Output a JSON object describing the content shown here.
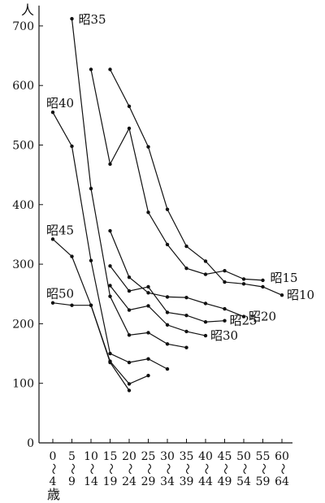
{
  "chart_data": {
    "type": "line",
    "y_unit_label": "人",
    "x_unit_label": "歳",
    "ylim": [
      0,
      700
    ],
    "yticks": [
      0,
      100,
      200,
      300,
      400,
      500,
      600,
      700
    ],
    "x_ticks": [
      {
        "x": 0,
        "top": "0",
        "tilde": "〜",
        "bottom": "4"
      },
      {
        "x": 5,
        "top": "5",
        "tilde": "〜",
        "bottom": "9"
      },
      {
        "x": 10,
        "top": "10",
        "tilde": "〜",
        "bottom": "14"
      },
      {
        "x": 15,
        "top": "15",
        "tilde": "〜",
        "bottom": "19"
      },
      {
        "x": 20,
        "top": "20",
        "tilde": "〜",
        "bottom": "24"
      },
      {
        "x": 25,
        "top": "25",
        "tilde": "〜",
        "bottom": "29"
      },
      {
        "x": 30,
        "top": "30",
        "tilde": "〜",
        "bottom": "34"
      },
      {
        "x": 35,
        "top": "35",
        "tilde": "〜",
        "bottom": "39"
      },
      {
        "x": 40,
        "top": "40",
        "tilde": "〜",
        "bottom": "44"
      },
      {
        "x": 45,
        "top": "45",
        "tilde": "〜",
        "bottom": "49"
      },
      {
        "x": 50,
        "top": "50",
        "tilde": "〜",
        "bottom": "54"
      },
      {
        "x": 55,
        "top": "55",
        "tilde": "〜",
        "bottom": "59"
      },
      {
        "x": 60,
        "top": "60",
        "tilde": "〜",
        "bottom": "64"
      }
    ],
    "grid": false,
    "series": [
      {
        "name": "昭10",
        "label_side": "end",
        "x": [
          15,
          20,
          25,
          30,
          35,
          40,
          45,
          50,
          55,
          60
        ],
        "y": [
          627,
          565,
          497,
          392,
          330,
          305,
          270,
          267,
          262,
          248
        ]
      },
      {
        "name": "昭15",
        "label_side": "end",
        "x": [
          10,
          15,
          20,
          25,
          30,
          35,
          40,
          45,
          50,
          55
        ],
        "y": [
          627,
          468,
          528,
          387,
          333,
          293,
          283,
          289,
          275,
          273
        ]
      },
      {
        "name": "昭20",
        "label_side": "end",
        "x": [
          15,
          20,
          25,
          30,
          35,
          40,
          45,
          50
        ],
        "y": [
          356,
          278,
          252,
          245,
          244,
          234,
          225,
          212
        ]
      },
      {
        "name": "昭25",
        "label_side": "end",
        "x": [
          15,
          20,
          25,
          30,
          35,
          40,
          45
        ],
        "y": [
          297,
          255,
          262,
          219,
          214,
          203,
          205
        ]
      },
      {
        "name": "昭30",
        "label_side": "end",
        "x": [
          15,
          20,
          25,
          30,
          35,
          40
        ],
        "y": [
          264,
          223,
          230,
          198,
          187,
          180
        ]
      },
      {
        "name": "昭35",
        "label_side": "start",
        "x": [
          5,
          10,
          15,
          20,
          25,
          30,
          35
        ],
        "y": [
          712,
          427,
          246,
          181,
          185,
          166,
          160
        ]
      },
      {
        "name": "昭40",
        "label_side": "start",
        "x": [
          0,
          5,
          10,
          15,
          20,
          25,
          30
        ],
        "y": [
          555,
          498,
          306,
          150,
          135,
          141,
          124
        ]
      },
      {
        "name": "昭45",
        "label_side": "start",
        "x": [
          0,
          5,
          10,
          15,
          20,
          25
        ],
        "y": [
          342,
          313,
          231,
          137,
          99,
          113
        ]
      },
      {
        "name": "昭50",
        "label_side": "start",
        "x": [
          0,
          5,
          10,
          15,
          20
        ],
        "y": [
          235,
          231,
          231,
          135,
          88
        ]
      }
    ]
  }
}
